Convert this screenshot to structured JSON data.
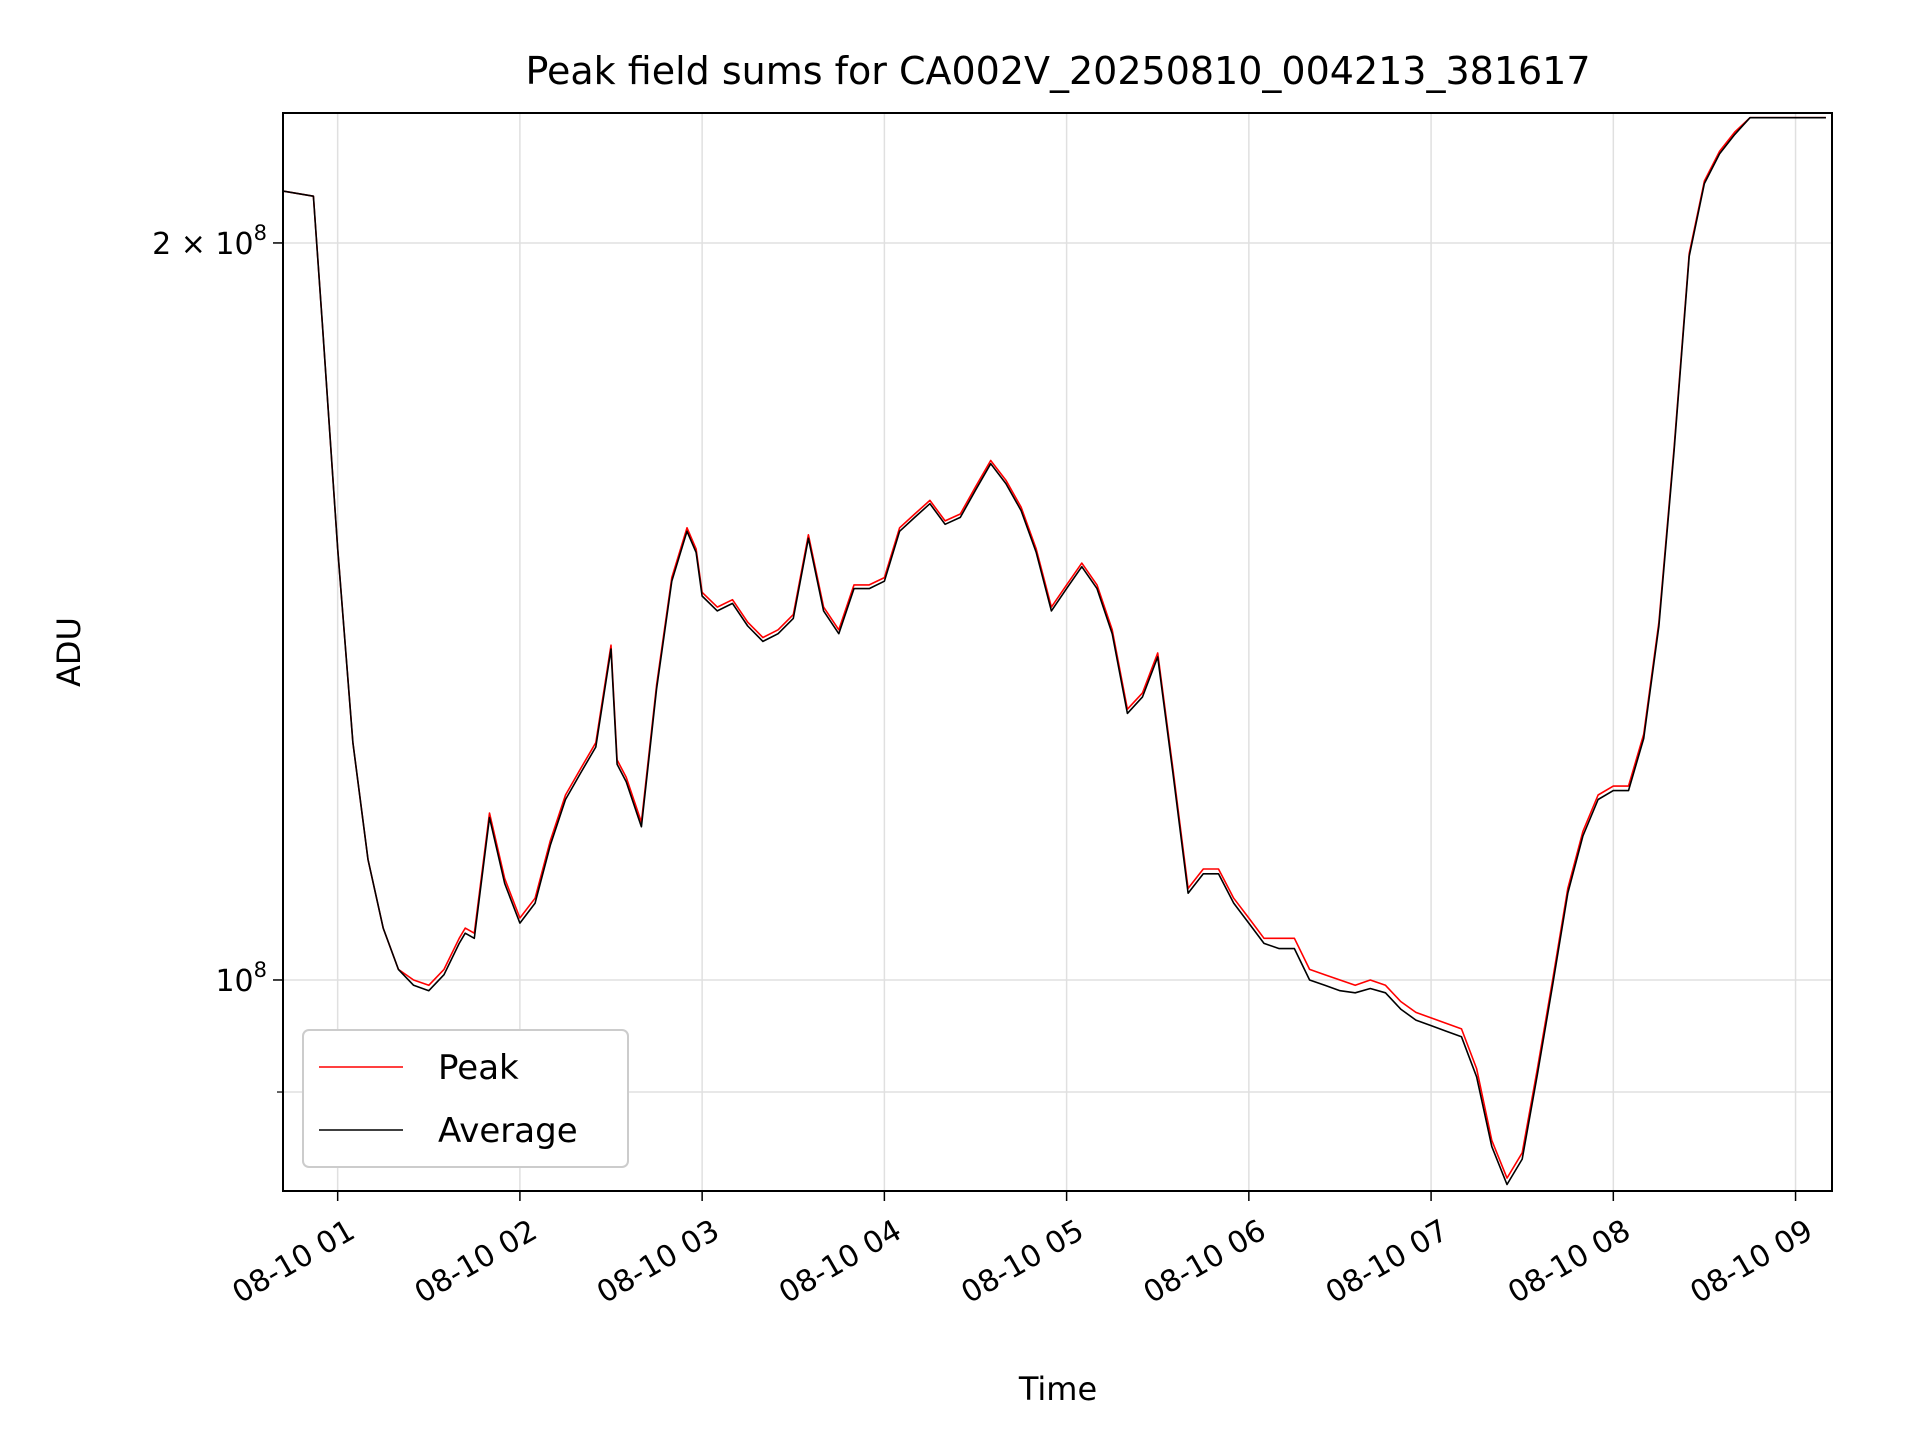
{
  "chart_data": {
    "type": "line",
    "title": "Peak field sums for CA002V_20250810_004213_381617",
    "xlabel": "Time",
    "ylabel": "ADU",
    "yscale": "log",
    "ylim": [
      82000000,
      226000000
    ],
    "xlim": [
      "08-10 00:42",
      "08-10 09:12"
    ],
    "x_ticks": [
      "08-10 01",
      "08-10 02",
      "08-10 03",
      "08-10 04",
      "08-10 05",
      "08-10 06",
      "08-10 07",
      "08-10 08",
      "08-10 09"
    ],
    "y_ticks": [
      {
        "value": 200000000,
        "label": "2 × 10",
        "exp": "8"
      },
      {
        "value": 100000000,
        "label": "10",
        "exp": "8"
      }
    ],
    "y_minor_ticks": [
      90000000
    ],
    "grid": true,
    "legend_position": "lower-left",
    "colors": {
      "peak": "#ff0000",
      "average": "#000000"
    },
    "series": [
      {
        "name": "Peak",
        "x": [
          "08-10 00:42",
          "08-10 00:52",
          "08-10 00:55",
          "08-10 01:00",
          "08-10 01:05",
          "08-10 01:10",
          "08-10 01:15",
          "08-10 01:20",
          "08-10 01:25",
          "08-10 01:30",
          "08-10 01:35",
          "08-10 01:40",
          "08-10 01:42",
          "08-10 01:45",
          "08-10 01:50",
          "08-10 01:55",
          "08-10 02:00",
          "08-10 02:05",
          "08-10 02:10",
          "08-10 02:15",
          "08-10 02:20",
          "08-10 02:25",
          "08-10 02:30",
          "08-10 02:32",
          "08-10 02:35",
          "08-10 02:40",
          "08-10 02:45",
          "08-10 02:50",
          "08-10 02:55",
          "08-10 02:58",
          "08-10 03:00",
          "08-10 03:05",
          "08-10 03:10",
          "08-10 03:15",
          "08-10 03:20",
          "08-10 03:25",
          "08-10 03:30",
          "08-10 03:35",
          "08-10 03:40",
          "08-10 03:45",
          "08-10 03:50",
          "08-10 03:55",
          "08-10 04:00",
          "08-10 04:05",
          "08-10 04:10",
          "08-10 04:15",
          "08-10 04:20",
          "08-10 04:25",
          "08-10 04:30",
          "08-10 04:35",
          "08-10 04:40",
          "08-10 04:45",
          "08-10 04:50",
          "08-10 04:55",
          "08-10 05:00",
          "08-10 05:05",
          "08-10 05:10",
          "08-10 05:15",
          "08-10 05:20",
          "08-10 05:25",
          "08-10 05:30",
          "08-10 05:35",
          "08-10 05:40",
          "08-10 05:45",
          "08-10 05:50",
          "08-10 05:55",
          "08-10 06:00",
          "08-10 06:05",
          "08-10 06:10",
          "08-10 06:15",
          "08-10 06:20",
          "08-10 06:25",
          "08-10 06:30",
          "08-10 06:35",
          "08-10 06:40",
          "08-10 06:45",
          "08-10 06:50",
          "08-10 06:55",
          "08-10 07:00",
          "08-10 07:05",
          "08-10 07:10",
          "08-10 07:15",
          "08-10 07:20",
          "08-10 07:25",
          "08-10 07:30",
          "08-10 07:35",
          "08-10 07:40",
          "08-10 07:45",
          "08-10 07:50",
          "08-10 07:55",
          "08-10 08:00",
          "08-10 08:05",
          "08-10 08:10",
          "08-10 08:15",
          "08-10 08:20",
          "08-10 08:25",
          "08-10 08:30",
          "08-10 08:35",
          "08-10 08:40",
          "08-10 08:45",
          "08-10 08:50",
          "08-10 08:55",
          "08-10 09:00",
          "08-10 09:05",
          "08-10 09:10"
        ],
        "values": [
          210000000,
          209000000,
          185000000,
          150000000,
          125000000,
          112000000,
          105000000,
          101000000,
          100000000,
          99500000,
          101000000,
          104000000,
          105000000,
          104500000,
          117000000,
          110000000,
          106000000,
          108000000,
          114000000,
          119000000,
          122000000,
          125000000,
          137000000,
          123000000,
          121000000,
          116000000,
          132000000,
          146000000,
          153000000,
          150000000,
          144000000,
          142000000,
          143000000,
          140000000,
          138000000,
          139000000,
          141000000,
          152000000,
          142000000,
          139000000,
          145000000,
          145000000,
          146000000,
          153000000,
          155000000,
          157000000,
          154000000,
          155000000,
          159000000,
          163000000,
          160000000,
          156000000,
          150000000,
          142000000,
          145000000,
          148000000,
          145000000,
          139000000,
          129000000,
          131000000,
          136000000,
          122000000,
          109000000,
          111000000,
          111000000,
          108000000,
          106000000,
          104000000,
          104000000,
          104000000,
          101000000,
          100500000,
          100000000,
          99500000,
          100000000,
          99500000,
          98000000,
          97000000,
          96500000,
          96000000,
          95500000,
          92000000,
          86000000,
          83000000,
          85000000,
          92000000,
          100000000,
          109000000,
          115000000,
          119000000,
          120000000,
          120000000,
          126000000,
          140000000,
          165000000,
          198000000,
          212000000,
          218000000,
          222000000,
          225000000,
          225000000,
          225000000,
          225000000,
          225000000,
          225000000
        ]
      },
      {
        "name": "Average",
        "x": [
          "08-10 00:42",
          "08-10 00:52",
          "08-10 00:55",
          "08-10 01:00",
          "08-10 01:05",
          "08-10 01:10",
          "08-10 01:15",
          "08-10 01:20",
          "08-10 01:25",
          "08-10 01:30",
          "08-10 01:35",
          "08-10 01:40",
          "08-10 01:42",
          "08-10 01:45",
          "08-10 01:50",
          "08-10 01:55",
          "08-10 02:00",
          "08-10 02:05",
          "08-10 02:10",
          "08-10 02:15",
          "08-10 02:20",
          "08-10 02:25",
          "08-10 02:30",
          "08-10 02:32",
          "08-10 02:35",
          "08-10 02:40",
          "08-10 02:45",
          "08-10 02:50",
          "08-10 02:55",
          "08-10 02:58",
          "08-10 03:00",
          "08-10 03:05",
          "08-10 03:10",
          "08-10 03:15",
          "08-10 03:20",
          "08-10 03:25",
          "08-10 03:30",
          "08-10 03:35",
          "08-10 03:40",
          "08-10 03:45",
          "08-10 03:50",
          "08-10 03:55",
          "08-10 04:00",
          "08-10 04:05",
          "08-10 04:10",
          "08-10 04:15",
          "08-10 04:20",
          "08-10 04:25",
          "08-10 04:30",
          "08-10 04:35",
          "08-10 04:40",
          "08-10 04:45",
          "08-10 04:50",
          "08-10 04:55",
          "08-10 05:00",
          "08-10 05:05",
          "08-10 05:10",
          "08-10 05:15",
          "08-10 05:20",
          "08-10 05:25",
          "08-10 05:30",
          "08-10 05:35",
          "08-10 05:40",
          "08-10 05:45",
          "08-10 05:50",
          "08-10 05:55",
          "08-10 06:00",
          "08-10 06:05",
          "08-10 06:10",
          "08-10 06:15",
          "08-10 06:20",
          "08-10 06:25",
          "08-10 06:30",
          "08-10 06:35",
          "08-10 06:40",
          "08-10 06:45",
          "08-10 06:50",
          "08-10 06:55",
          "08-10 07:00",
          "08-10 07:05",
          "08-10 07:10",
          "08-10 07:15",
          "08-10 07:20",
          "08-10 07:25",
          "08-10 07:30",
          "08-10 07:35",
          "08-10 07:40",
          "08-10 07:45",
          "08-10 07:50",
          "08-10 07:55",
          "08-10 08:00",
          "08-10 08:05",
          "08-10 08:10",
          "08-10 08:15",
          "08-10 08:20",
          "08-10 08:25",
          "08-10 08:30",
          "08-10 08:35",
          "08-10 08:40",
          "08-10 08:45",
          "08-10 08:50",
          "08-10 08:55",
          "08-10 09:00",
          "08-10 09:05",
          "08-10 09:10"
        ],
        "values": [
          210000000,
          209000000,
          185000000,
          150000000,
          125000000,
          112000000,
          105000000,
          101000000,
          99500000,
          99000000,
          100500000,
          103500000,
          104500000,
          104000000,
          116500000,
          109500000,
          105500000,
          107500000,
          113500000,
          118500000,
          121500000,
          124500000,
          136500000,
          122500000,
          120500000,
          115500000,
          131500000,
          145500000,
          152500000,
          149500000,
          143500000,
          141500000,
          142500000,
          139500000,
          137500000,
          138500000,
          140500000,
          151500000,
          141500000,
          138500000,
          144500000,
          144500000,
          145500000,
          152500000,
          154500000,
          156500000,
          153500000,
          154500000,
          158500000,
          162500000,
          159500000,
          155500000,
          149500000,
          141500000,
          144500000,
          147500000,
          144500000,
          138500000,
          128500000,
          130500000,
          135500000,
          121500000,
          108500000,
          110500000,
          110500000,
          107500000,
          105500000,
          103500000,
          103000000,
          103000000,
          100000000,
          99500000,
          99000000,
          98800000,
          99200000,
          98800000,
          97300000,
          96300000,
          95800000,
          95300000,
          94800000,
          91300000,
          85500000,
          82500000,
          84500000,
          91500000,
          99500000,
          108500000,
          114500000,
          118500000,
          119500000,
          119500000,
          125500000,
          139500000,
          164500000,
          197500000,
          211500000,
          217500000,
          221500000,
          225000000,
          225000000,
          225000000,
          225000000,
          225000000,
          225000000
        ]
      }
    ]
  }
}
